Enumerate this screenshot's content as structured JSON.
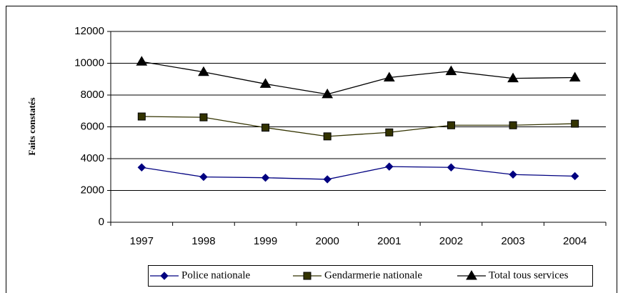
{
  "chart_data": {
    "type": "line",
    "ylabel": "Faits constatés",
    "categories": [
      "1997",
      "1998",
      "1999",
      "2000",
      "2001",
      "2002",
      "2003",
      "2004"
    ],
    "series": [
      {
        "name": "Police nationale",
        "color": "#000080",
        "marker": "diamond",
        "values": [
          3450,
          2850,
          2800,
          2700,
          3500,
          3450,
          3000,
          2900
        ]
      },
      {
        "name": "Gendarmerie nationale",
        "color": "#333300",
        "marker": "square",
        "values": [
          6650,
          6600,
          5950,
          5400,
          5650,
          6100,
          6100,
          6200
        ]
      },
      {
        "name": "Total tous services",
        "color": "#000000",
        "marker": "triangle",
        "values": [
          10100,
          9450,
          8700,
          8050,
          9100,
          9500,
          9050,
          9100
        ]
      }
    ],
    "ylim": [
      0,
      12000
    ],
    "yticks": [
      0,
      2000,
      4000,
      6000,
      8000,
      10000,
      12000
    ],
    "grid": true,
    "legend": "bottom"
  }
}
